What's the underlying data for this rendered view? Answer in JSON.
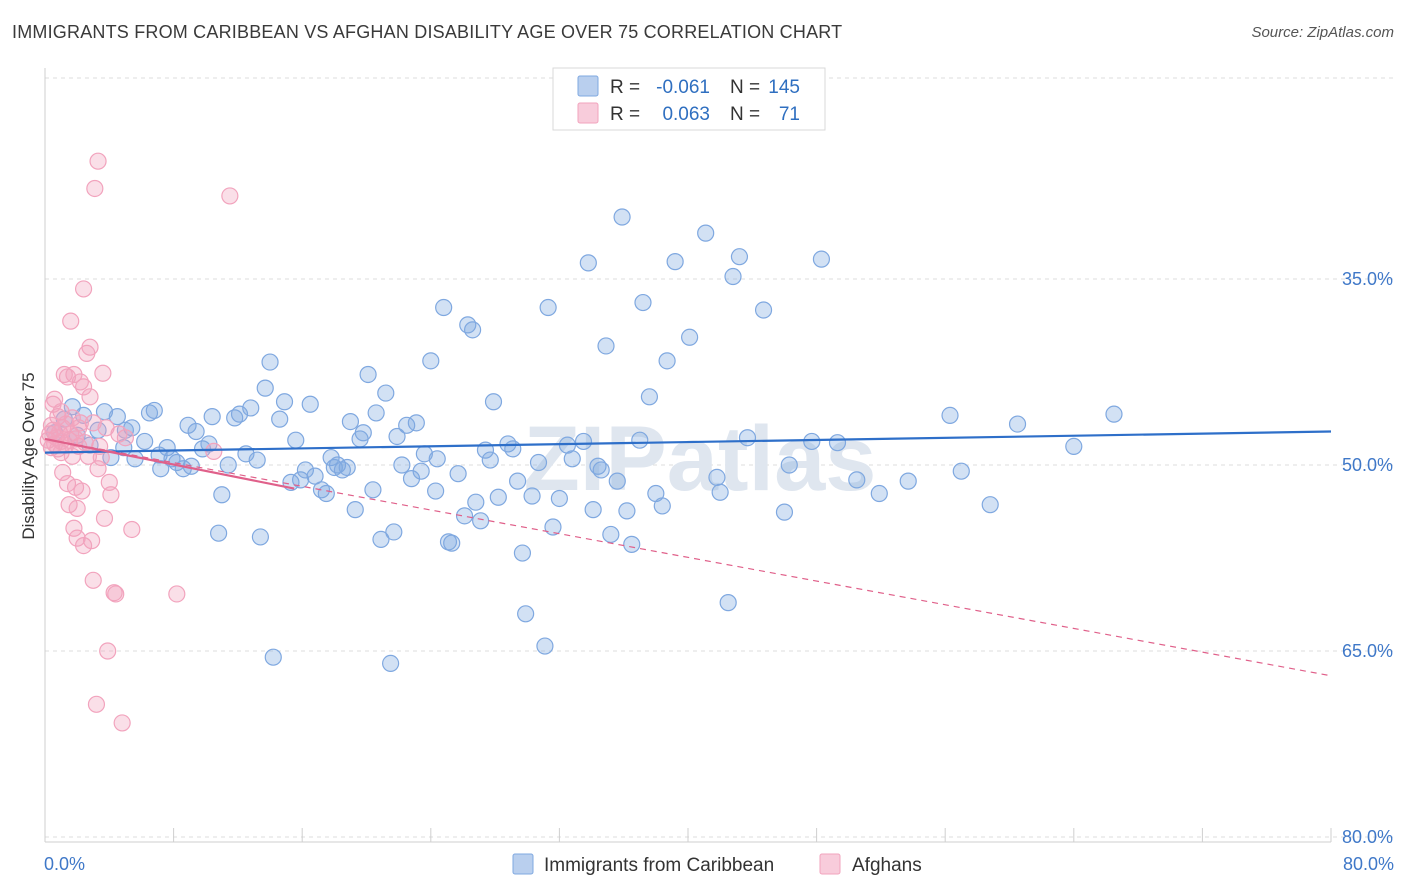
{
  "title": "IMMIGRANTS FROM CARIBBEAN VS AFGHAN DISABILITY AGE OVER 75 CORRELATION CHART",
  "source": "Source: ZipAtlas.com",
  "watermark": "ZIPatlas",
  "colors": {
    "blue": "#7fa8e0",
    "blue_line": "#2e6fc9",
    "pink": "#f2a3bd",
    "pink_line": "#e0608a",
    "tick_text": "#3f78c8",
    "grid": "#dddddd"
  },
  "legend": {
    "rows": [
      {
        "r_label": "R =",
        "r_value": "-0.061",
        "n_label": "N =",
        "n_value": "145",
        "color": "#7fa8e0"
      },
      {
        "r_label": "R =",
        "r_value": "0.063",
        "n_label": "N =",
        "n_value": "71",
        "color": "#f2a3bd"
      }
    ]
  },
  "bottom_legend": [
    {
      "label": "Immigrants from Caribbean",
      "color": "#7fa8e0"
    },
    {
      "label": "Afghans",
      "color": "#f2a3bd"
    }
  ],
  "chart_data": {
    "type": "scatter",
    "title": "IMMIGRANTS FROM CARIBBEAN VS AFGHAN DISABILITY AGE OVER 75 CORRELATION CHART",
    "xlabel": "",
    "ylabel": "Disability Age Over 75",
    "xlim": [
      0,
      80
    ],
    "ylim": [
      20,
      82
    ],
    "x_tick_labels": [
      "0.0%",
      "80.0%"
    ],
    "y_ticks": [
      35,
      50,
      65,
      80
    ],
    "y_tick_labels": [
      "35.0%",
      "50.0%",
      "65.0%",
      "80.0%"
    ],
    "grid": true,
    "legend_position": "top-center",
    "series": [
      {
        "name": "Immigrants from Caribbean",
        "color": "#7fa8e0",
        "trend": {
          "x": [
            0,
            80
          ],
          "y": [
            49.0,
            47.3
          ],
          "style": "solid"
        },
        "points": [
          [
            0.6,
            47.4
          ],
          [
            1.2,
            46.3
          ],
          [
            1.7,
            45.3
          ],
          [
            2.0,
            47.6
          ],
          [
            2.4,
            46.0
          ],
          [
            2.8,
            48.4
          ],
          [
            3.3,
            47.2
          ],
          [
            3.7,
            45.7
          ],
          [
            4.1,
            49.4
          ],
          [
            4.5,
            46.1
          ],
          [
            4.9,
            48.6
          ],
          [
            5.0,
            47.2
          ],
          [
            5.4,
            47.0
          ],
          [
            5.6,
            49.5
          ],
          [
            6.2,
            48.1
          ],
          [
            6.5,
            45.8
          ],
          [
            6.8,
            45.6
          ],
          [
            7.1,
            49.2
          ],
          [
            7.2,
            50.3
          ],
          [
            7.6,
            48.6
          ],
          [
            7.9,
            49.5
          ],
          [
            8.2,
            49.8
          ],
          [
            8.6,
            50.3
          ],
          [
            8.9,
            46.8
          ],
          [
            9.1,
            50.1
          ],
          [
            9.4,
            47.3
          ],
          [
            9.8,
            48.7
          ],
          [
            10.2,
            48.3
          ],
          [
            10.4,
            46.1
          ],
          [
            10.8,
            55.5
          ],
          [
            11.0,
            52.4
          ],
          [
            11.4,
            50.0
          ],
          [
            11.8,
            46.2
          ],
          [
            12.1,
            45.9
          ],
          [
            12.5,
            49.1
          ],
          [
            12.8,
            45.4
          ],
          [
            13.2,
            49.6
          ],
          [
            13.4,
            55.8
          ],
          [
            13.7,
            43.8
          ],
          [
            14.0,
            41.7
          ],
          [
            14.2,
            65.5
          ],
          [
            14.6,
            46.3
          ],
          [
            14.9,
            44.9
          ],
          [
            15.3,
            51.4
          ],
          [
            15.6,
            48.0
          ],
          [
            15.9,
            51.2
          ],
          [
            16.2,
            50.4
          ],
          [
            16.5,
            45.1
          ],
          [
            16.8,
            50.9
          ],
          [
            17.2,
            52.0
          ],
          [
            17.5,
            52.3
          ],
          [
            17.8,
            49.4
          ],
          [
            18.0,
            50.2
          ],
          [
            18.2,
            50.0
          ],
          [
            18.5,
            50.4
          ],
          [
            18.8,
            50.2
          ],
          [
            19.0,
            46.5
          ],
          [
            19.3,
            53.6
          ],
          [
            19.6,
            47.9
          ],
          [
            19.8,
            47.4
          ],
          [
            20.1,
            42.7
          ],
          [
            20.4,
            52.0
          ],
          [
            20.6,
            45.8
          ],
          [
            20.9,
            56.0
          ],
          [
            21.2,
            44.2
          ],
          [
            21.5,
            66.0
          ],
          [
            21.7,
            55.4
          ],
          [
            21.9,
            47.7
          ],
          [
            22.2,
            50.0
          ],
          [
            22.5,
            46.8
          ],
          [
            22.8,
            51.1
          ],
          [
            23.1,
            46.6
          ],
          [
            23.4,
            50.5
          ],
          [
            23.6,
            49.1
          ],
          [
            24.0,
            41.6
          ],
          [
            24.3,
            52.1
          ],
          [
            24.4,
            49.5
          ],
          [
            24.8,
            37.3
          ],
          [
            25.1,
            56.2
          ],
          [
            25.3,
            56.3
          ],
          [
            25.7,
            50.7
          ],
          [
            26.1,
            54.1
          ],
          [
            26.3,
            38.7
          ],
          [
            26.6,
            39.1
          ],
          [
            26.8,
            53.0
          ],
          [
            27.1,
            54.5
          ],
          [
            27.4,
            48.8
          ],
          [
            27.7,
            49.6
          ],
          [
            27.9,
            44.9
          ],
          [
            28.2,
            52.6
          ],
          [
            28.8,
            48.3
          ],
          [
            29.1,
            48.7
          ],
          [
            29.4,
            51.3
          ],
          [
            29.7,
            57.1
          ],
          [
            29.9,
            62.0
          ],
          [
            30.3,
            52.5
          ],
          [
            30.7,
            49.8
          ],
          [
            31.1,
            64.6
          ],
          [
            31.3,
            37.3
          ],
          [
            31.6,
            55.0
          ],
          [
            32.0,
            52.7
          ],
          [
            32.5,
            48.4
          ],
          [
            32.8,
            49.5
          ],
          [
            33.5,
            48.1
          ],
          [
            33.8,
            33.7
          ],
          [
            34.1,
            53.6
          ],
          [
            34.4,
            50.1
          ],
          [
            34.6,
            50.4
          ],
          [
            34.9,
            40.4
          ],
          [
            35.2,
            55.6
          ],
          [
            35.6,
            51.3
          ],
          [
            35.9,
            30.0
          ],
          [
            36.2,
            53.7
          ],
          [
            36.5,
            56.4
          ],
          [
            37.0,
            48.0
          ],
          [
            37.2,
            36.9
          ],
          [
            37.6,
            44.5
          ],
          [
            38.0,
            52.3
          ],
          [
            38.4,
            53.3
          ],
          [
            38.7,
            41.6
          ],
          [
            39.2,
            33.6
          ],
          [
            40.1,
            39.7
          ],
          [
            41.1,
            31.3
          ],
          [
            41.8,
            51.0
          ],
          [
            42.0,
            52.2
          ],
          [
            42.5,
            61.1
          ],
          [
            42.8,
            34.8
          ],
          [
            43.2,
            33.2
          ],
          [
            43.7,
            47.8
          ],
          [
            44.7,
            37.5
          ],
          [
            46.0,
            53.8
          ],
          [
            46.3,
            50.0
          ],
          [
            47.7,
            48.1
          ],
          [
            48.3,
            33.4
          ],
          [
            49.3,
            48.2
          ],
          [
            50.5,
            51.2
          ],
          [
            51.9,
            52.3
          ],
          [
            53.7,
            51.3
          ],
          [
            56.3,
            46.0
          ],
          [
            57.0,
            50.5
          ],
          [
            58.8,
            53.2
          ],
          [
            60.5,
            46.7
          ],
          [
            64.0,
            48.5
          ],
          [
            66.5,
            45.9
          ]
        ]
      },
      {
        "name": "Afghans",
        "color": "#f2a3bd",
        "trend_solid": {
          "x": [
            0,
            15.5
          ],
          "y": [
            47.9,
            51.9
          ]
        },
        "trend": {
          "x": [
            0,
            80
          ],
          "y": [
            47.9,
            67.0
          ],
          "style": "dashed"
        },
        "points": [
          [
            0.2,
            48.0
          ],
          [
            0.3,
            47.5
          ],
          [
            0.4,
            46.8
          ],
          [
            0.4,
            48.6
          ],
          [
            0.5,
            47.2
          ],
          [
            0.5,
            45.1
          ],
          [
            0.6,
            48.3
          ],
          [
            0.6,
            44.7
          ],
          [
            0.7,
            47.8
          ],
          [
            0.8,
            46.1
          ],
          [
            0.8,
            48.7
          ],
          [
            0.9,
            47.4
          ],
          [
            1.0,
            48.1
          ],
          [
            1.0,
            45.7
          ],
          [
            1.1,
            47.0
          ],
          [
            1.1,
            50.6
          ],
          [
            1.2,
            42.7
          ],
          [
            1.3,
            48.4
          ],
          [
            1.3,
            46.7
          ],
          [
            1.4,
            51.5
          ],
          [
            1.4,
            42.9
          ],
          [
            1.5,
            53.2
          ],
          [
            1.5,
            48.0
          ],
          [
            1.6,
            38.4
          ],
          [
            1.6,
            47.5
          ],
          [
            1.7,
            46.2
          ],
          [
            1.7,
            49.3
          ],
          [
            1.8,
            42.7
          ],
          [
            1.8,
            55.1
          ],
          [
            1.9,
            47.9
          ],
          [
            1.9,
            51.8
          ],
          [
            2.0,
            55.9
          ],
          [
            2.0,
            53.5
          ],
          [
            2.1,
            48.5
          ],
          [
            2.1,
            47.0
          ],
          [
            2.2,
            43.3
          ],
          [
            2.2,
            46.6
          ],
          [
            2.3,
            52.1
          ],
          [
            2.4,
            56.5
          ],
          [
            2.4,
            43.7
          ],
          [
            2.5,
            48.2
          ],
          [
            2.6,
            41.0
          ],
          [
            2.7,
            49.3
          ],
          [
            2.8,
            40.5
          ],
          [
            2.8,
            44.5
          ],
          [
            2.9,
            56.1
          ],
          [
            3.0,
            59.3
          ],
          [
            3.0,
            46.6
          ],
          [
            3.1,
            27.7
          ],
          [
            3.2,
            69.3
          ],
          [
            3.3,
            25.5
          ],
          [
            3.3,
            50.3
          ],
          [
            3.4,
            48.5
          ],
          [
            3.5,
            49.4
          ],
          [
            3.6,
            42.6
          ],
          [
            3.7,
            54.3
          ],
          [
            3.8,
            47.0
          ],
          [
            3.9,
            65.0
          ],
          [
            4.0,
            51.4
          ],
          [
            4.1,
            52.4
          ],
          [
            4.3,
            60.3
          ],
          [
            4.4,
            60.4
          ],
          [
            4.6,
            47.5
          ],
          [
            4.8,
            70.8
          ],
          [
            5.0,
            47.8
          ],
          [
            5.4,
            55.2
          ],
          [
            8.2,
            60.4
          ],
          [
            10.5,
            48.9
          ],
          [
            11.5,
            28.3
          ],
          [
            2.4,
            35.8
          ],
          [
            1.0,
            49.0
          ]
        ]
      }
    ]
  }
}
